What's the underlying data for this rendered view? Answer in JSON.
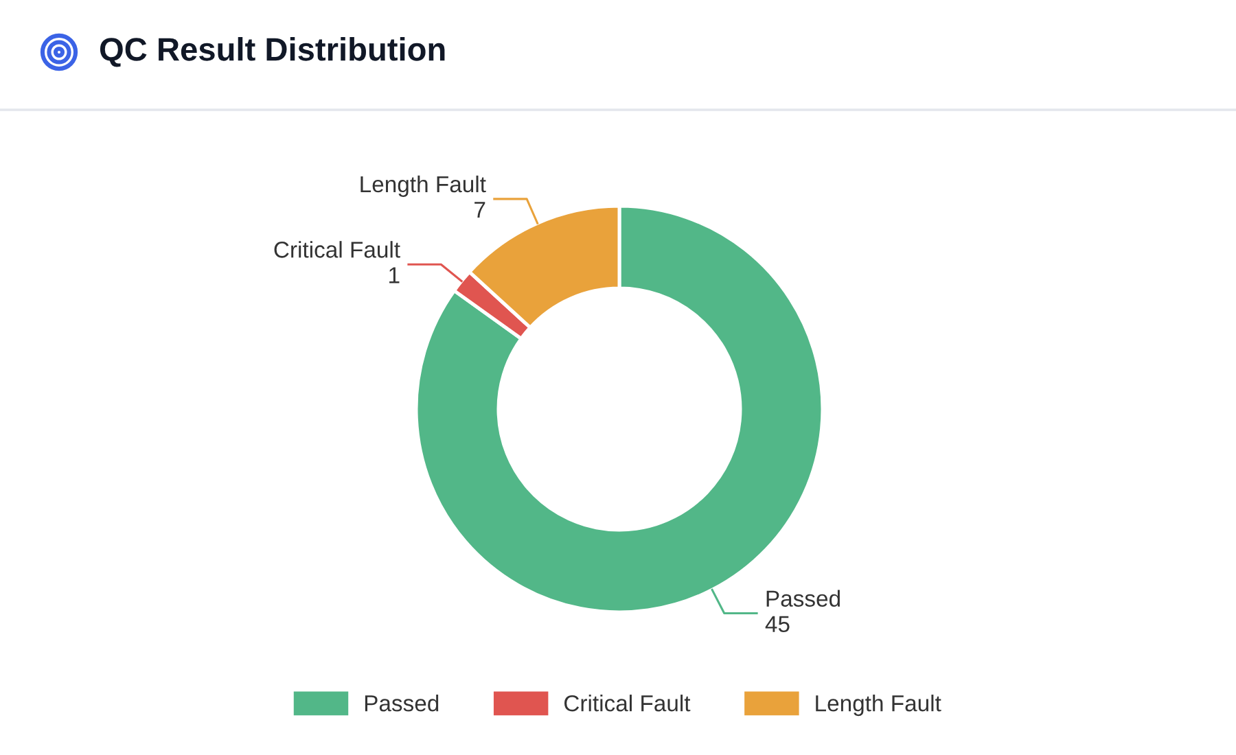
{
  "chart_data": {
    "type": "donut",
    "title": "QC Result Distribution",
    "categories": [
      "Passed",
      "Critical Fault",
      "Length Fault"
    ],
    "values": [
      45,
      1,
      7
    ],
    "colors": [
      "#52b788",
      "#e05550",
      "#e9a23b"
    ],
    "data_labels": true,
    "legend": "bottom"
  }
}
